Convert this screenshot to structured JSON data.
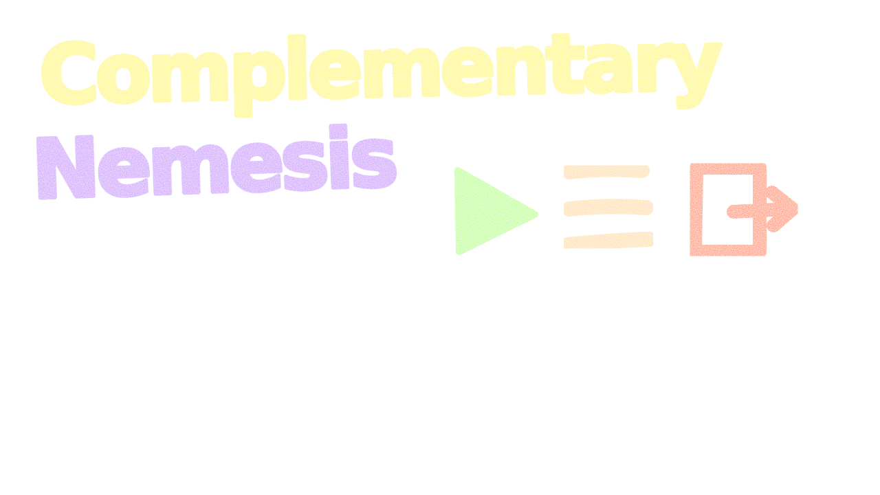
{
  "title": {
    "line1": "Complementary",
    "line2": "Nemesis"
  },
  "buttons": {
    "play": {
      "icon": "play-icon",
      "color": "#b4ff88"
    },
    "menu": {
      "icon": "hamburger-menu-icon",
      "color": "#ffd9a3"
    },
    "exit": {
      "icon": "exit-door-icon",
      "color": "#ff8a6a"
    }
  },
  "colors": {
    "background": "#ffffff",
    "title_line1": "#fff468",
    "title_line2": "#c28cfb"
  }
}
